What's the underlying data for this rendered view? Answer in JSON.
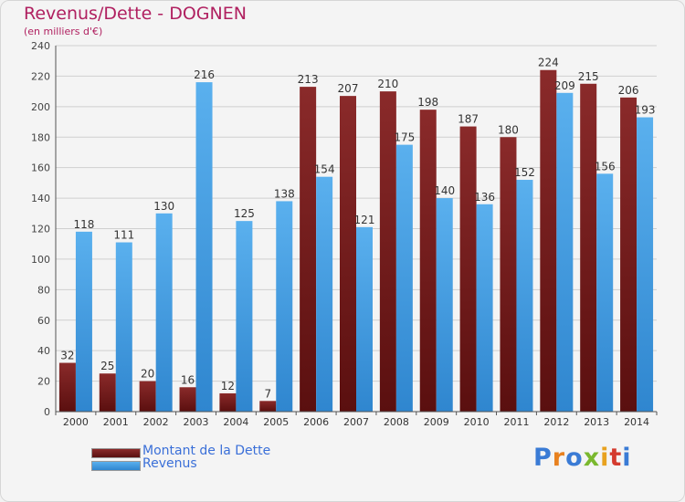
{
  "header": {
    "title": "Revenus/Dette - DOGNEN",
    "subtitle": "(en milliers d'€)"
  },
  "colors": {
    "dette": "#7a1a1a",
    "revenus": "#3f9be0",
    "title": "#b02060",
    "legend_text": "#3a6fd8"
  },
  "chart_data": {
    "type": "bar",
    "categories": [
      "2000",
      "2001",
      "2002",
      "2003",
      "2004",
      "2005",
      "2006",
      "2007",
      "2008",
      "2009",
      "2010",
      "2011",
      "2012",
      "2013",
      "2014"
    ],
    "series": [
      {
        "name": "Montant de la Dette",
        "values": [
          32,
          25,
          20,
          16,
          12,
          7,
          213,
          207,
          210,
          198,
          187,
          180,
          224,
          215,
          206
        ]
      },
      {
        "name": "Revenus",
        "values": [
          118,
          111,
          130,
          216,
          125,
          138,
          154,
          121,
          175,
          140,
          136,
          152,
          209,
          156,
          193
        ]
      }
    ],
    "ylim": [
      0,
      240
    ],
    "yticks": [
      0,
      20,
      40,
      60,
      80,
      100,
      120,
      140,
      160,
      180,
      200,
      220,
      240
    ],
    "grid": true,
    "legend_position": "bottom-left"
  },
  "legend": {
    "items": [
      {
        "label": "Montant de la Dette"
      },
      {
        "label": "Revenus"
      }
    ]
  },
  "logo": {
    "text": "Proxiti",
    "letter_colors": [
      "#3a7bd5",
      "#e8811f",
      "#3a7bd5",
      "#7ab82e",
      "#e8a21f",
      "#d43b2e",
      "#3a7bd5"
    ]
  }
}
